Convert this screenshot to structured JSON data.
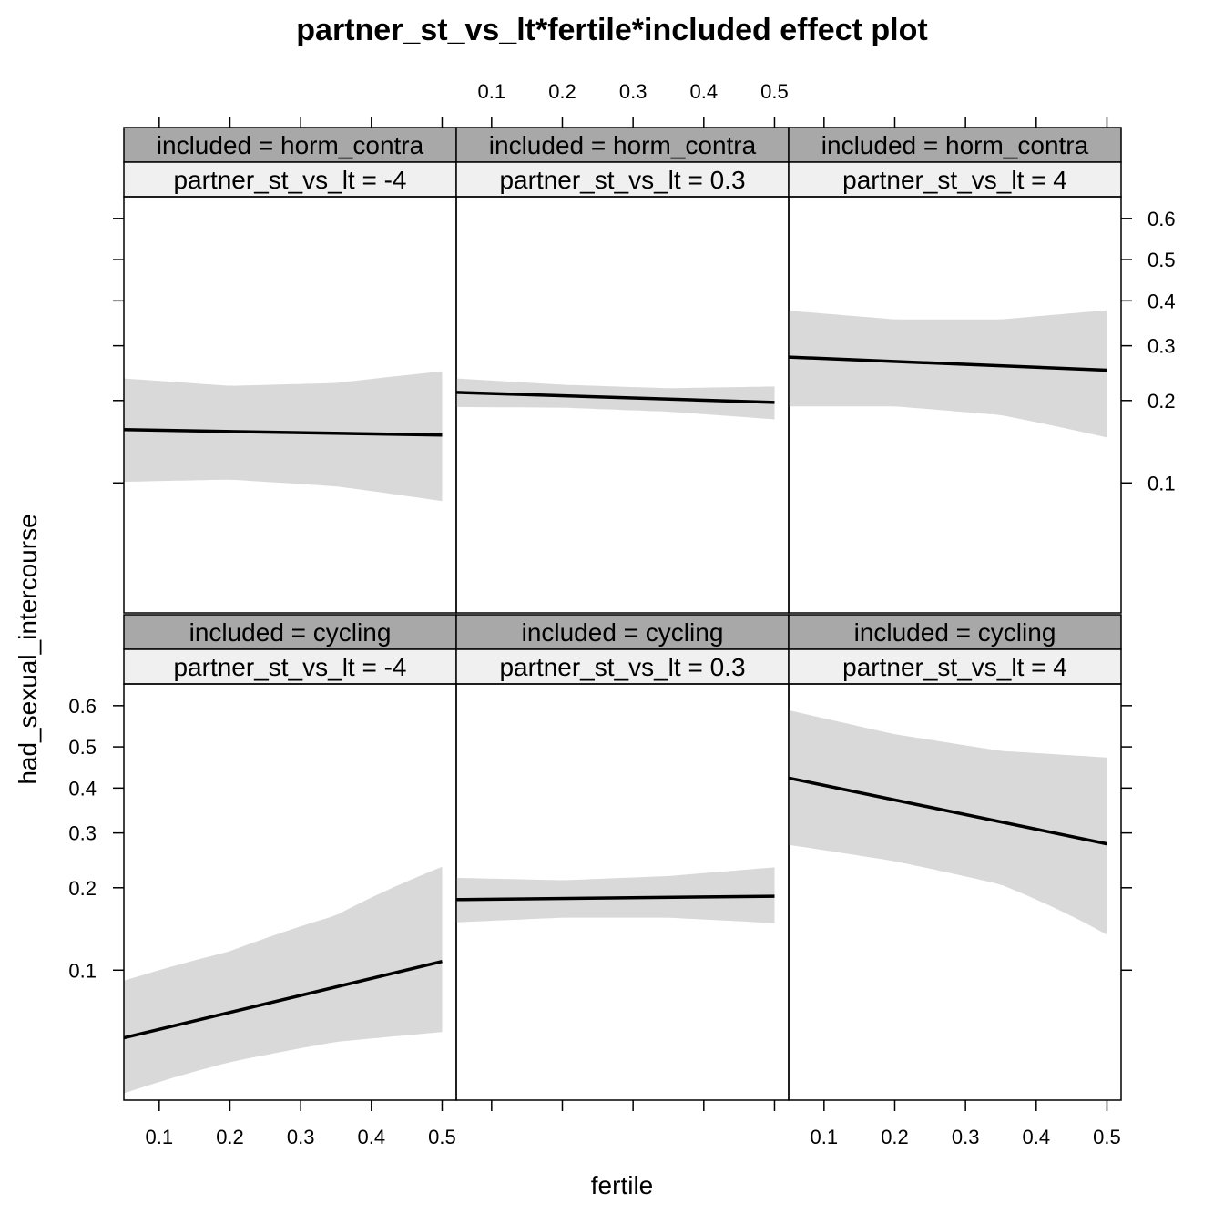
{
  "chart_data": {
    "type": "line",
    "title": "partner_st_vs_lt*fertile*included effect plot",
    "xlabel": "fertile",
    "ylabel": "had_sexual_intercourse",
    "x_ticks": [
      "0.1",
      "0.2",
      "0.3",
      "0.4",
      "0.5"
    ],
    "y_ticks": [
      "0.1",
      "0.2",
      "0.3",
      "0.4",
      "0.5",
      "0.6"
    ],
    "y_scale": "logit",
    "xlim": [
      0.05,
      0.52
    ],
    "ylim": [
      0.03,
      0.65
    ],
    "grid": false,
    "band": "confidence band",
    "colors": {
      "line": "#000000",
      "band": "#d9d9d9",
      "strip_outer": "#a8a8a8",
      "strip_inner": "#f0f0f0"
    },
    "panels": [
      {
        "included_label": "included = horm_contra",
        "partner_label": "partner_st_vs_lt = -4",
        "x": [
          0.05,
          0.5
        ],
        "y": [
          0.158,
          0.151
        ],
        "band_x": [
          0.05,
          0.2,
          0.35,
          0.5
        ],
        "band_lower": [
          0.101,
          0.103,
          0.097,
          0.085
        ],
        "band_upper": [
          0.237,
          0.224,
          0.229,
          0.25
        ]
      },
      {
        "included_label": "included = horm_contra",
        "partner_label": "partner_st_vs_lt = 0.3",
        "x": [
          0.05,
          0.5
        ],
        "y": [
          0.213,
          0.197
        ],
        "band_x": [
          0.05,
          0.2,
          0.35,
          0.5
        ],
        "band_lower": [
          0.19,
          0.189,
          0.183,
          0.172
        ],
        "band_upper": [
          0.237,
          0.226,
          0.22,
          0.223
        ]
      },
      {
        "included_label": "included = horm_contra",
        "partner_label": "partner_st_vs_lt = 4",
        "x": [
          0.05,
          0.5
        ],
        "y": [
          0.277,
          0.252
        ],
        "band_x": [
          0.05,
          0.2,
          0.35,
          0.5
        ],
        "band_lower": [
          0.191,
          0.191,
          0.178,
          0.148
        ],
        "band_upper": [
          0.377,
          0.357,
          0.357,
          0.378
        ]
      },
      {
        "included_label": "included = cycling",
        "partner_label": "partner_st_vs_lt = -4",
        "x": [
          0.05,
          0.5
        ],
        "y": [
          0.054,
          0.108
        ],
        "band_x": [
          0.05,
          0.2,
          0.35,
          0.5
        ],
        "band_lower": [
          0.032,
          0.043,
          0.052,
          0.057
        ],
        "band_upper": [
          0.091,
          0.118,
          0.16,
          0.235
        ]
      },
      {
        "included_label": "included = cycling",
        "partner_label": "partner_st_vs_lt = 0.3",
        "x": [
          0.05,
          0.5
        ],
        "y": [
          0.182,
          0.187
        ],
        "band_x": [
          0.05,
          0.2,
          0.35,
          0.5
        ],
        "band_lower": [
          0.151,
          0.157,
          0.157,
          0.15
        ],
        "band_upper": [
          0.216,
          0.212,
          0.219,
          0.234
        ]
      },
      {
        "included_label": "included = cycling",
        "partner_label": "partner_st_vs_lt = 4",
        "x": [
          0.05,
          0.5
        ],
        "y": [
          0.424,
          0.278
        ],
        "band_x": [
          0.05,
          0.2,
          0.35,
          0.5
        ],
        "band_lower": [
          0.276,
          0.245,
          0.205,
          0.136
        ],
        "band_upper": [
          0.589,
          0.531,
          0.49,
          0.474
        ]
      }
    ]
  }
}
